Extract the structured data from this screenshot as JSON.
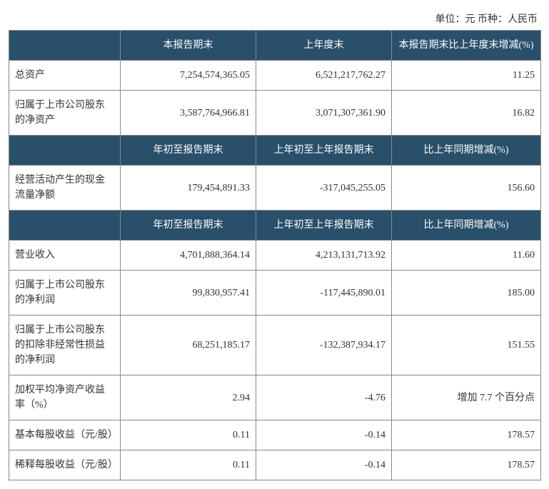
{
  "unit_line": "单位：元  币种：人民币",
  "headers1": {
    "blank": "",
    "c2": "本报告期末",
    "c3": "上年度末",
    "c4": "本报告期末比上年度末增减(%)"
  },
  "headers2": {
    "c2": "年初至报告期末",
    "c3": "上年初至上年报告期末",
    "c4": "比上年同期增减(%)"
  },
  "headers3": {
    "c2": "年初至报告期末",
    "c3": "上年初至上年报告期末",
    "c4": "比上年同期增减(%)"
  },
  "rows": {
    "r1": {
      "label": "总资产",
      "v1": "7,254,574,365.05",
      "v2": "6,521,217,762.27",
      "v3": "11.25"
    },
    "r2": {
      "label": "归属于上市公司股东的净资产",
      "v1": "3,587,764,966.81",
      "v2": "3,071,307,361.90",
      "v3": "16.82"
    },
    "r3": {
      "label": "经营活动产生的现金流量净额",
      "v1": "179,454,891.33",
      "v2": "-317,045,255.05",
      "v3": "156.60"
    },
    "r4": {
      "label": "营业收入",
      "v1": "4,701,888,364.14",
      "v2": "4,213,131,713.92",
      "v3": "11.60"
    },
    "r5": {
      "label": "归属于上市公司股东的净利润",
      "v1": "99,830,957.41",
      "v2": "-117,445,890.01",
      "v3": "185.00"
    },
    "r6": {
      "label": "归属于上市公司股东的扣除非经常性损益的净利润",
      "v1": "68,251,185.17",
      "v2": "-132,387,934.17",
      "v3": "151.55"
    },
    "r7": {
      "label": "加权平均净资产收益率（%）",
      "v1": "2.94",
      "v2": "-4.76",
      "v3": "增加 7.7 个百分点"
    },
    "r8": {
      "label": "基本每股收益（元/股）",
      "v1": "0.11",
      "v2": "-0.14",
      "v3": "178.57"
    },
    "r9": {
      "label": "稀释每股收益（元/股）",
      "v1": "0.11",
      "v2": "-0.14",
      "v3": "178.57"
    }
  },
  "style": {
    "dark_bg": "#2a4f6b",
    "dark_fg": "#ffffff",
    "border_color": "#888888",
    "font_size_pt": 10.5
  }
}
